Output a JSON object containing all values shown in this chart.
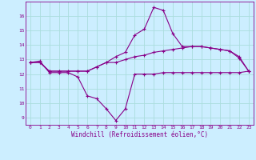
{
  "xlabel": "Windchill (Refroidissement éolien,°C)",
  "background_color": "#cceeff",
  "grid_color": "#aadddd",
  "line_color": "#880088",
  "x": [
    0,
    1,
    2,
    3,
    4,
    5,
    6,
    7,
    8,
    9,
    10,
    11,
    12,
    13,
    14,
    15,
    16,
    17,
    18,
    19,
    20,
    21,
    22,
    23
  ],
  "line1": [
    12.8,
    12.9,
    12.1,
    12.1,
    12.1,
    11.8,
    10.5,
    10.3,
    9.6,
    8.8,
    9.6,
    12.0,
    12.0,
    12.0,
    12.1,
    12.1,
    12.1,
    12.1,
    12.1,
    12.1,
    12.1,
    12.1,
    12.1,
    12.2
  ],
  "line2": [
    12.8,
    12.8,
    12.2,
    12.2,
    12.2,
    12.2,
    12.2,
    12.5,
    12.8,
    12.8,
    13.0,
    13.2,
    13.3,
    13.5,
    13.6,
    13.7,
    13.8,
    13.9,
    13.9,
    13.8,
    13.7,
    13.6,
    13.2,
    12.2
  ],
  "line3": [
    12.8,
    12.8,
    12.2,
    12.2,
    12.2,
    12.2,
    12.2,
    12.5,
    12.8,
    13.2,
    13.5,
    14.7,
    15.1,
    16.6,
    16.4,
    14.8,
    13.9,
    13.9,
    13.9,
    13.8,
    13.7,
    13.6,
    13.1,
    12.2
  ],
  "ylim": [
    8.5,
    17.0
  ],
  "yticks": [
    9,
    10,
    11,
    12,
    13,
    14,
    15,
    16
  ],
  "xlim": [
    -0.5,
    23.5
  ]
}
